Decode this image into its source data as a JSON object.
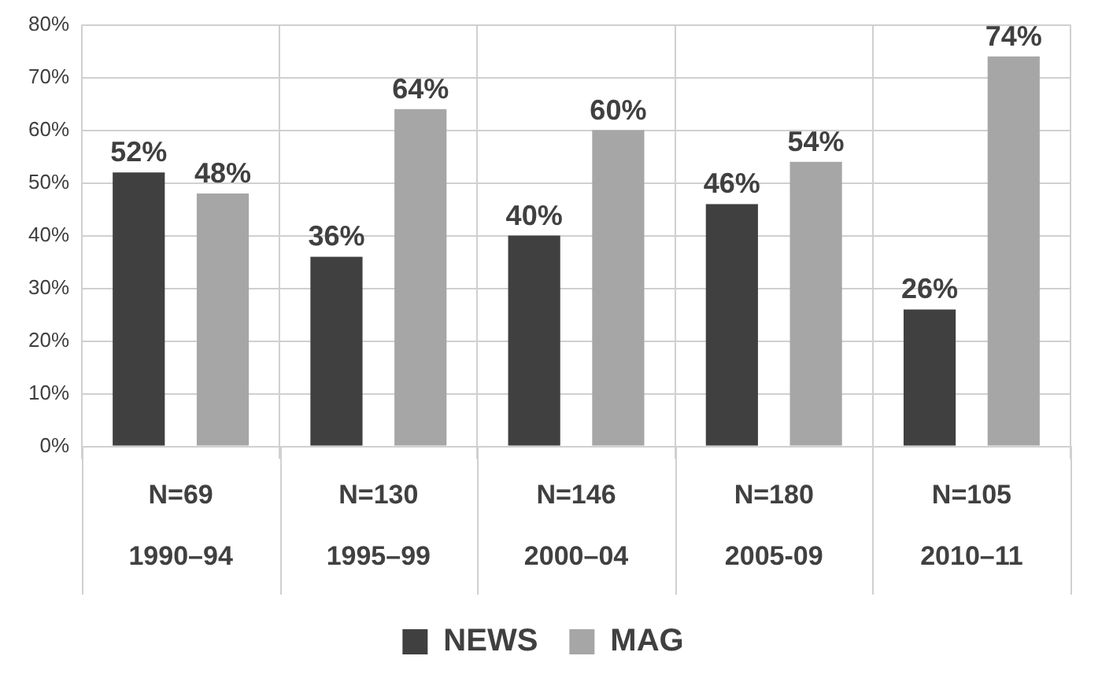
{
  "chart_data": {
    "type": "bar",
    "categories": [
      "N=69\n1990–94",
      "N=130\n1995–99",
      "N=146\n2000–04",
      "N=180\n2005-09",
      "N=105\n2010–11"
    ],
    "series": [
      {
        "name": "NEWS",
        "color": "#404040",
        "values": [
          52,
          36,
          40,
          46,
          26
        ],
        "value_labels": [
          "52%",
          "36%",
          "40%",
          "46%",
          "26%"
        ]
      },
      {
        "name": "MAG",
        "color": "#a6a6a6",
        "values": [
          48,
          64,
          60,
          54,
          74
        ],
        "value_labels": [
          "48%",
          "64%",
          "60%",
          "54%",
          "74%"
        ]
      }
    ],
    "ylim": [
      0,
      80
    ],
    "yticks": [
      {
        "value": 0,
        "label": "0%"
      },
      {
        "value": 10,
        "label": "10%"
      },
      {
        "value": 20,
        "label": "20%"
      },
      {
        "value": 30,
        "label": "30%"
      },
      {
        "value": 40,
        "label": "40%"
      },
      {
        "value": 50,
        "label": "50%"
      },
      {
        "value": 60,
        "label": "60%"
      },
      {
        "value": 70,
        "label": "70%"
      },
      {
        "value": 80,
        "label": "80%"
      }
    ],
    "grid": true,
    "legend": "bottom"
  }
}
